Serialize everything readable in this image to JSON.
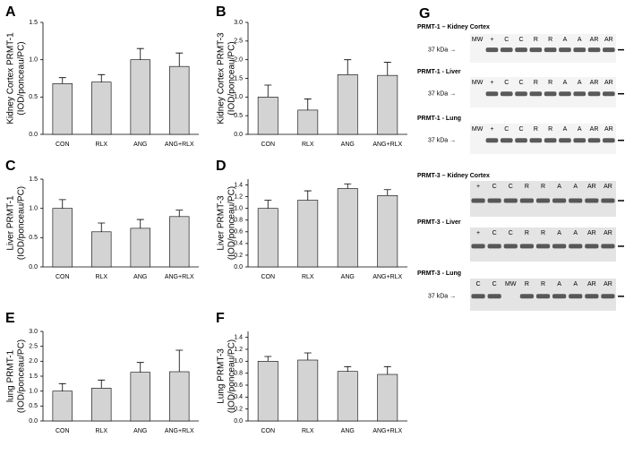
{
  "chart_data": [
    {
      "type": "bar",
      "panel": "A",
      "ylabel": [
        "Kidney Cortex PRMT-1",
        "(IOD/ponceau/PC)"
      ],
      "categories": [
        "CON",
        "RLX",
        "ANG",
        "ANG+RLX"
      ],
      "values": [
        0.68,
        0.7,
        1.0,
        0.91
      ],
      "errors": [
        0.08,
        0.1,
        0.15,
        0.18
      ],
      "color": "#d3d3d3",
      "ylim": [
        0,
        1.5
      ],
      "yticks": [
        {
          "value": 0,
          "label": "0.0"
        },
        0.5,
        {
          "value": 1,
          "label": "1.0"
        },
        1.5
      ]
    },
    {
      "type": "bar",
      "panel": "B",
      "ylabel": [
        "Kidney Cortex PRMT-3",
        "(IOD/ponceau/PC)"
      ],
      "categories": [
        "CON",
        "RLX",
        "ANG",
        "ANG+RLX"
      ],
      "values": [
        1.0,
        0.65,
        1.6,
        1.58
      ],
      "errors": [
        0.32,
        0.3,
        0.4,
        0.35
      ],
      "color": "#d3d3d3",
      "ylim": [
        0,
        3
      ],
      "yticks": [
        {
          "value": 0,
          "label": "0.0"
        },
        0.5,
        {
          "value": 1,
          "label": "1.0"
        },
        1.5,
        {
          "value": 2,
          "label": "2.0"
        },
        2.5,
        {
          "value": 3,
          "label": "3.0"
        }
      ]
    },
    {
      "type": "bar",
      "panel": "C",
      "ylabel": [
        "Liver PRMT-1",
        "(IOD/ponceau/PC)"
      ],
      "categories": [
        "CON",
        "RLX",
        "ANG",
        "ANG+RLX"
      ],
      "values": [
        1.0,
        0.6,
        0.66,
        0.86
      ],
      "errors": [
        0.15,
        0.15,
        0.15,
        0.11
      ],
      "color": "#d3d3d3",
      "ylim": [
        0,
        1.5
      ],
      "yticks": [
        {
          "value": 0,
          "label": "0.0"
        },
        0.5,
        {
          "value": 1,
          "label": "1.0"
        },
        1.5
      ]
    },
    {
      "type": "bar",
      "panel": "D",
      "ylabel": [
        "Liver PRMT-3",
        "(IOD/ponceau/PC)"
      ],
      "categories": [
        "CON",
        "RLX",
        "ANG",
        "ANG+RLX"
      ],
      "values": [
        1.0,
        1.14,
        1.34,
        1.22
      ],
      "errors": [
        0.14,
        0.16,
        0.08,
        0.1
      ],
      "color": "#d3d3d3",
      "ylim": [
        0,
        1.5
      ],
      "yticks": [
        {
          "value": 0,
          "label": "0.0"
        },
        0.2,
        0.4,
        0.6,
        0.8,
        {
          "value": 1,
          "label": "1.0"
        },
        1.2,
        1.4
      ]
    },
    {
      "type": "bar",
      "panel": "E",
      "ylabel": [
        "lung PRMT-1",
        "(IOD/ponceau/PC)"
      ],
      "categories": [
        "CON",
        "RLX",
        "ANG",
        "ANG+RLX"
      ],
      "values": [
        1.0,
        1.1,
        1.63,
        1.65
      ],
      "errors": [
        0.25,
        0.27,
        0.33,
        0.72
      ],
      "color": "#d3d3d3",
      "ylim": [
        0,
        3
      ],
      "yticks": [
        {
          "value": 0,
          "label": "0.0"
        },
        0.5,
        {
          "value": 1,
          "label": "1.0"
        },
        1.5,
        {
          "value": 2,
          "label": "2.0"
        },
        2.5,
        {
          "value": 3,
          "label": "3.0"
        }
      ]
    },
    {
      "type": "bar",
      "panel": "F",
      "ylabel": [
        "Lung PRMT-3",
        "(IOD/ponceau/PC)"
      ],
      "categories": [
        "CON",
        "RLX",
        "ANG",
        "ANG+RLX"
      ],
      "values": [
        1.0,
        1.02,
        0.83,
        0.78
      ],
      "errors": [
        0.08,
        0.12,
        0.08,
        0.13
      ],
      "color": "#d3d3d3",
      "ylim": [
        0,
        1.5
      ],
      "yticks": [
        {
          "value": 0,
          "label": "0.0"
        },
        0.2,
        0.4,
        0.6,
        0.8,
        {
          "value": 1,
          "label": "1.0"
        },
        1.2,
        1.4
      ]
    }
  ],
  "blots": {
    "panel": "G",
    "sections": [
      {
        "title": "PRMT-1 – Kidney Cortex",
        "lanes": [
          "MW",
          "+",
          "C",
          "C",
          "R",
          "R",
          "A",
          "A",
          "AR",
          "AR"
        ],
        "marker": "37 kDa →"
      },
      {
        "title": "PRMT-1 - Liver",
        "lanes": [
          "MW",
          "+",
          "C",
          "C",
          "R",
          "R",
          "A",
          "A",
          "AR",
          "AR"
        ],
        "marker": "37 kDa →"
      },
      {
        "title": "PRMT-1 - Lung",
        "lanes": [
          "MW",
          "+",
          "C",
          "C",
          "R",
          "R",
          "A",
          "A",
          "AR",
          "AR"
        ],
        "marker": "37 kDa →"
      },
      {
        "title": "PRMT-3 – Kidney Cortex",
        "lanes": [
          "+",
          "C",
          "C",
          "R",
          "R",
          "A",
          "A",
          "AR",
          "AR"
        ]
      },
      {
        "title": "PRMT-3 - Liver",
        "lanes": [
          "+",
          "C",
          "C",
          "R",
          "R",
          "A",
          "A",
          "AR",
          "AR"
        ]
      },
      {
        "title": "PRMT-3 - Lung",
        "lanes": [
          "C",
          "C",
          "MW",
          "R",
          "R",
          "A",
          "A",
          "AR",
          "AR"
        ],
        "marker": "37 kDa →"
      }
    ]
  }
}
